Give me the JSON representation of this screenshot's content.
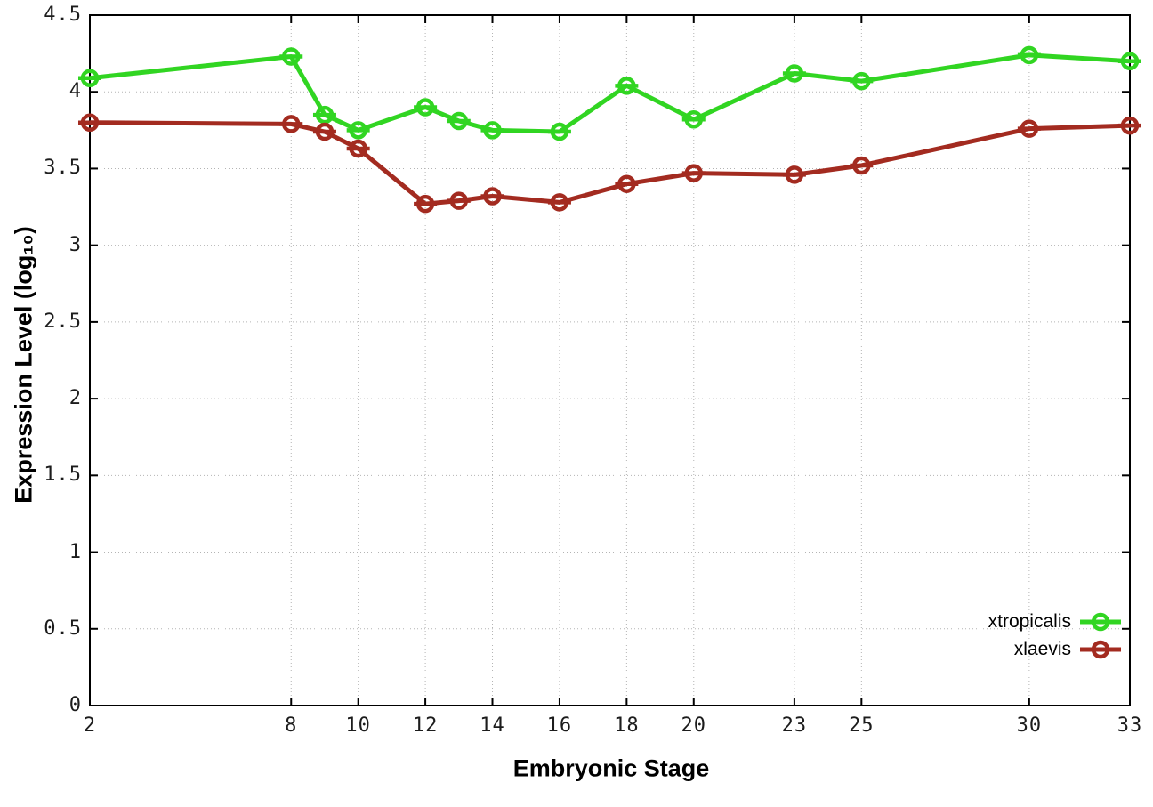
{
  "chart_data": {
    "type": "line",
    "title": "",
    "xlabel": "Embryonic Stage",
    "ylabel": "Expression Level (log₁₀)",
    "xlim": [
      2,
      33
    ],
    "ylim": [
      0,
      4.5
    ],
    "grid": true,
    "legend_position": "bottom-right",
    "marker": "open-circle-with-horizontal-bar",
    "x_ticks": [
      2,
      8,
      10,
      12,
      14,
      16,
      18,
      20,
      23,
      25,
      30,
      33
    ],
    "x_tick_labels": [
      "2",
      "8",
      "10",
      "12",
      "14",
      "16",
      "18",
      "20",
      "23",
      "25",
      "30",
      "33"
    ],
    "y_ticks": [
      0,
      0.5,
      1,
      1.5,
      2,
      2.5,
      3,
      3.5,
      4,
      4.5
    ],
    "y_tick_labels": [
      "0",
      "0.5",
      "1",
      "1.5",
      "2",
      "2.5",
      "3",
      "3.5",
      "4",
      "4.5"
    ],
    "x": [
      2,
      8,
      9,
      10,
      12,
      13,
      14,
      16,
      18,
      20,
      23,
      25,
      30,
      33
    ],
    "series": [
      {
        "name": "xtropicalis",
        "color": "#31d522",
        "values": [
          4.09,
          4.23,
          3.85,
          3.75,
          3.9,
          3.81,
          3.75,
          3.74,
          4.04,
          3.82,
          4.12,
          4.07,
          4.24,
          4.2
        ]
      },
      {
        "name": "xlaevis",
        "color": "#a32b20",
        "values": [
          3.8,
          3.79,
          3.74,
          3.63,
          3.27,
          3.29,
          3.32,
          3.28,
          3.4,
          3.47,
          3.46,
          3.52,
          3.76,
          3.78
        ]
      }
    ],
    "colors": {
      "background": "#ffffff",
      "axis": "#000000",
      "gridline": "#b4b4b4",
      "tick_text": "#1c1c1c"
    }
  },
  "legend": {
    "items": [
      {
        "label": "xtropicalis"
      },
      {
        "label": "xlaevis"
      }
    ]
  }
}
